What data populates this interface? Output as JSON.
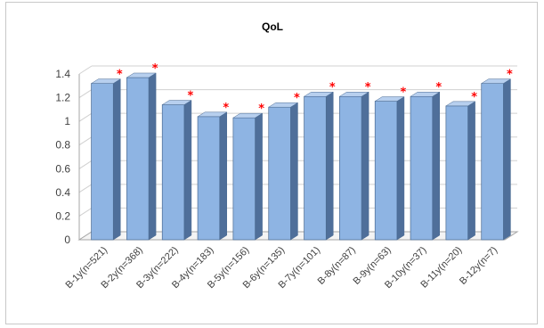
{
  "chart_data": {
    "type": "bar",
    "title": "QoL",
    "xlabel": "",
    "ylabel": "",
    "ylim": [
      0,
      1.4
    ],
    "yticks": [
      "0",
      "0.2",
      "0.4",
      "0.6",
      "0.8",
      "1",
      "1.2",
      "1.4"
    ],
    "grid": true,
    "legend": "none",
    "categories": [
      "B-1y(n=521)",
      "B-2y(n=368)",
      "B-3y(n=222)",
      "B-4y(n=183)",
      "B-5y(n=156)",
      "B-6y(n=135)",
      "B-7y(n=101)",
      "B-8y(n=87)",
      "B-9y(n=63)",
      "B-10y(n=37)",
      "B-11y(n=20)",
      "B-12y(n=7)"
    ],
    "values": [
      1.32,
      1.37,
      1.14,
      1.04,
      1.03,
      1.12,
      1.21,
      1.21,
      1.17,
      1.21,
      1.13,
      1.32
    ],
    "annotations": [
      "*",
      "*",
      "*",
      "*",
      "*",
      "*",
      "*",
      "*",
      "*",
      "*",
      "*",
      "*"
    ],
    "colors": {
      "bar_front": "#8eb4e3",
      "bar_side": "#4f6f9a",
      "bar_top": "#b7cfee",
      "bar_outline": "#4a6a92",
      "annotation": "#ff0000",
      "grid": "#d0d0d0",
      "axis": "#a6a6a6"
    }
  }
}
